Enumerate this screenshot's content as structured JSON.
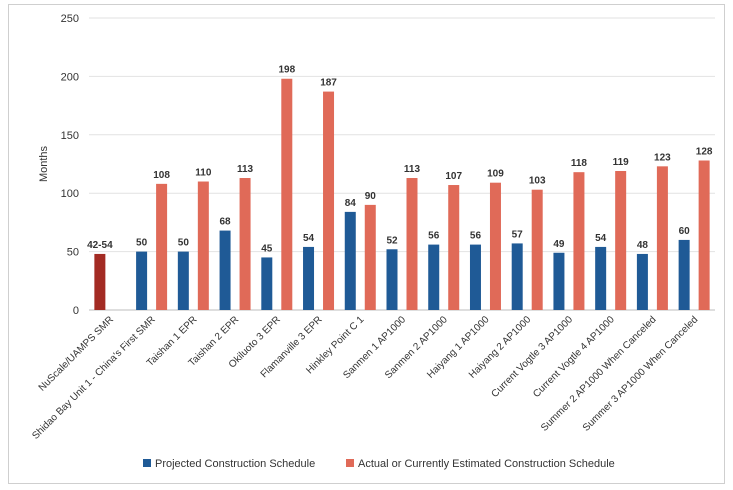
{
  "chart_data": {
    "type": "bar",
    "ylabel": "Months",
    "ylim": [
      0,
      250
    ],
    "yticks": [
      0,
      50,
      100,
      150,
      200,
      250
    ],
    "grid": true,
    "legend_position": "bottom",
    "categories": [
      "NuScale/UAMPS SMR",
      "Shidao Bay Unit 1 - China's First SMR",
      "Taishan 1 EPR",
      "Taishan 2 EPR",
      "Okiluoto 3 EPR",
      "Flamanville 3 EPR",
      "Hinkley Point C 1",
      "Sanmen 1 AP1000",
      "Sanmen 2 AP1000",
      "Haiyang 1 AP1000",
      "Haiyang 2 AP1000",
      "Current Vogtle 3 AP1000",
      "Current Vogtle 4 AP1000",
      "Summer 2 AP1000 When Canceled",
      "Summer 3 AP1000 When Canceled"
    ],
    "series": [
      {
        "name": "Projected Construction Schedule",
        "color": "#1f5a96",
        "values": [
          48,
          50,
          50,
          68,
          45,
          54,
          84,
          52,
          56,
          56,
          57,
          49,
          54,
          48,
          60
        ],
        "labels": [
          "42-54",
          "50",
          "50",
          "68",
          "45",
          "54",
          "84",
          "52",
          "56",
          "56",
          "57",
          "49",
          "54",
          "48",
          "60"
        ]
      },
      {
        "name": "Actual or Currently Estimated Construction Schedule",
        "color": "#e06a58",
        "values": [
          null,
          108,
          110,
          113,
          198,
          187,
          90,
          113,
          107,
          109,
          103,
          118,
          119,
          123,
          128
        ],
        "labels": [
          "",
          "108",
          "110",
          "113",
          "198",
          "187",
          "90",
          "113",
          "107",
          "109",
          "103",
          "118",
          "119",
          "123",
          "128"
        ]
      }
    ],
    "highlight": {
      "category_index": 0,
      "color": "#a32b23"
    }
  }
}
